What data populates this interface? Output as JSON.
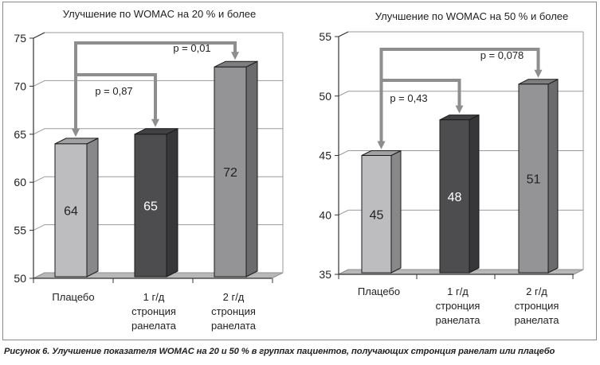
{
  "caption": "Рисунок 6. Улучшение показателя WOMAC на 20 и 50 % в группах пациентов, получающих стронция ранелат или плацебо",
  "colors": {
    "placebo": "#bdbdc0",
    "one_g": "#4d4d4f",
    "two_g": "#949497",
    "bracket": "#8e8e8e",
    "grid": "#9a9a9a"
  },
  "chart_data": [
    {
      "type": "bar",
      "title": "Улучшение по WOMAC на 20 % и более",
      "categories": [
        "Плацебо",
        "1 г/д стронция ранелата",
        "2 г/д стронция ранелата"
      ],
      "category_lines": [
        [
          "Плацебо"
        ],
        [
          "1 г/д",
          "стронция",
          "ранелата"
        ],
        [
          "2 г/д",
          "стронция",
          "ранелата"
        ]
      ],
      "values": [
        64,
        65,
        72
      ],
      "data_labels": [
        "64",
        "65",
        "72"
      ],
      "ylim": [
        50,
        75
      ],
      "yticks": [
        "50",
        "55",
        "60",
        "65",
        "70",
        "75"
      ],
      "grid": true,
      "annotations": [
        {
          "label": "p = 0,87",
          "from": 0,
          "to": 1
        },
        {
          "label": "p = 0,01",
          "from": 0,
          "to": 2
        }
      ]
    },
    {
      "type": "bar",
      "title": "Улучшение по WOMAC на 50 % и более",
      "categories": [
        "Плацебо",
        "1 г/д стронция ранелата",
        "2 г/д стронция ранелата"
      ],
      "category_lines": [
        [
          "Плацебо"
        ],
        [
          "1 г/д",
          "стронция",
          "ранелата"
        ],
        [
          "2 г/д",
          "стронция",
          "ранелата"
        ]
      ],
      "values": [
        45,
        48,
        51
      ],
      "data_labels": [
        "45",
        "48",
        "51"
      ],
      "ylim": [
        35,
        55
      ],
      "yticks": [
        "35",
        "40",
        "45",
        "50",
        "55"
      ],
      "grid": true,
      "annotations": [
        {
          "label": "p = 0,43",
          "from": 0,
          "to": 1
        },
        {
          "label": "p = 0,078",
          "from": 0,
          "to": 2
        }
      ]
    }
  ]
}
